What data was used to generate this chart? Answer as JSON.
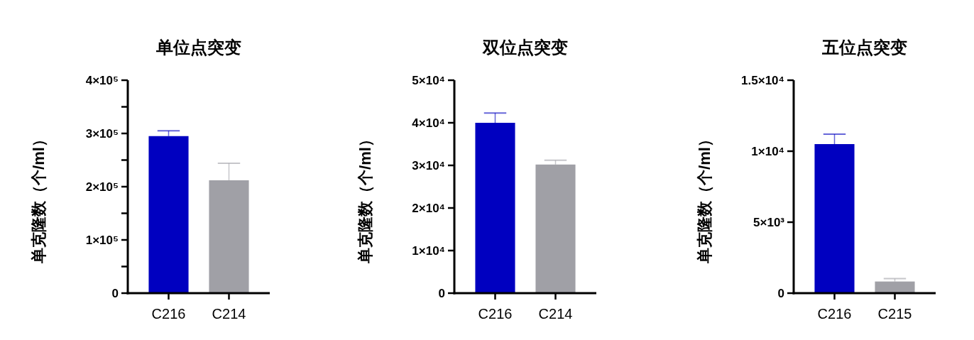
{
  "chart_data": [
    {
      "type": "bar",
      "title": "单位点突变",
      "ylabel": "单克隆数（个/ml）",
      "categories": [
        "C216",
        "C214"
      ],
      "values": [
        295000,
        212000
      ],
      "errors": [
        10000,
        32000
      ],
      "colors": [
        "#0000c0",
        "#a0a0a6"
      ],
      "ylim": [
        0,
        400000
      ],
      "yticks": [
        {
          "value": 0,
          "label": "0"
        },
        {
          "value": 50000,
          "label": null
        },
        {
          "value": 100000,
          "label": "1×10⁵"
        },
        {
          "value": 150000,
          "label": null
        },
        {
          "value": 200000,
          "label": "2×10⁵"
        },
        {
          "value": 250000,
          "label": null
        },
        {
          "value": 300000,
          "label": "3×10⁵"
        },
        {
          "value": 350000,
          "label": null
        },
        {
          "value": 400000,
          "label": "4×10⁵"
        }
      ]
    },
    {
      "type": "bar",
      "title": "双位点突变",
      "ylabel": "单克隆数（个/ml）",
      "categories": [
        "C216",
        "C214"
      ],
      "values": [
        40000,
        30200
      ],
      "errors": [
        2300,
        1000
      ],
      "colors": [
        "#0000c0",
        "#a0a0a6"
      ],
      "ylim": [
        0,
        50000
      ],
      "yticks": [
        {
          "value": 0,
          "label": "0"
        },
        {
          "value": 10000,
          "label": "1×10⁴"
        },
        {
          "value": 20000,
          "label": "2×10⁴"
        },
        {
          "value": 30000,
          "label": "3×10⁴"
        },
        {
          "value": 40000,
          "label": "4×10⁴"
        },
        {
          "value": 50000,
          "label": "5×10⁴"
        }
      ]
    },
    {
      "type": "bar",
      "title": "五位点突变",
      "ylabel": "单克隆数（个/ml）",
      "categories": [
        "C216",
        "C215"
      ],
      "values": [
        10500,
        820
      ],
      "errors": [
        700,
        200
      ],
      "colors": [
        "#0000c0",
        "#a0a0a6"
      ],
      "ylim": [
        0,
        15000
      ],
      "yticks": [
        {
          "value": 0,
          "label": "0"
        },
        {
          "value": 5000,
          "label": "5×10³"
        },
        {
          "value": 10000,
          "label": "1×10⁴"
        },
        {
          "value": 15000,
          "label": "1.5×10⁴"
        }
      ]
    }
  ]
}
